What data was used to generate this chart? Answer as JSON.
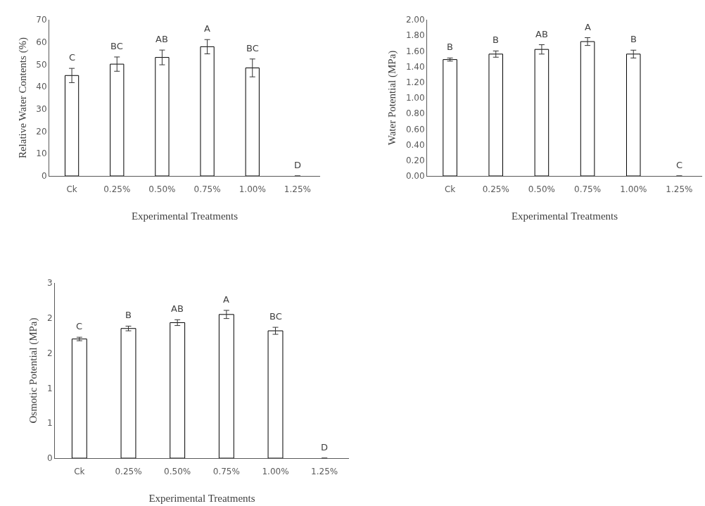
{
  "chart_data": [
    {
      "type": "bar",
      "categories": [
        "Ck",
        "0.25%",
        "0.50%",
        "0.75%",
        "1.00%",
        "1.25%"
      ],
      "values": [
        45.0,
        50.1,
        53.1,
        57.9,
        48.4,
        0
      ],
      "errors": [
        3.2,
        3.2,
        3.3,
        3.2,
        4.0,
        null
      ],
      "color": "#ffffff",
      "ylim": [
        0,
        70
      ],
      "yticks": [
        0,
        10,
        20,
        30,
        40,
        50,
        60,
        70
      ],
      "ylabel": "Relative Water Contents (%)",
      "xlabel": "Experimental Treatments",
      "annotations": [
        "C",
        "BC",
        "AB",
        "A",
        "BC",
        "D"
      ]
    },
    {
      "type": "bar",
      "categories": [
        "Ck",
        "0.25%",
        "0.50%",
        "0.75%",
        "1.00%",
        "1.25%"
      ],
      "values": [
        1.49,
        1.56,
        1.62,
        1.72,
        1.56,
        0
      ],
      "errors": [
        0.02,
        0.04,
        0.06,
        0.05,
        0.05,
        null
      ],
      "color": "#ffffff",
      "ylim": [
        0,
        2
      ],
      "yticks": [
        {
          "value": 0,
          "label": "0.00"
        },
        {
          "value": 0.2,
          "label": "0.20"
        },
        {
          "value": 0.4,
          "label": "0.40"
        },
        {
          "value": 0.6,
          "label": "0.60"
        },
        {
          "value": 0.8,
          "label": "0.80"
        },
        {
          "value": 1,
          "label": "1.00"
        },
        {
          "value": 1.2,
          "label": "1.20"
        },
        {
          "value": 1.4,
          "label": "1.40"
        },
        {
          "value": 1.6,
          "label": "1.60"
        },
        {
          "value": 1.8,
          "label": "1.80"
        },
        {
          "value": 2,
          "label": "2.00"
        }
      ],
      "ylabel": "Water Potential (MPa)",
      "xlabel": "Experimental Treatments",
      "annotations": [
        "B",
        "B",
        "AB",
        "A",
        "B",
        "C"
      ]
    },
    {
      "type": "bar",
      "categories": [
        "Ck",
        "0.25%",
        "0.50%",
        "0.75%",
        "1.00%",
        "1.25%"
      ],
      "values": [
        2.04,
        2.22,
        2.32,
        2.46,
        2.18,
        0
      ],
      "errors": [
        0.03,
        0.04,
        0.05,
        0.07,
        0.06,
        null
      ],
      "color": "#ffffff",
      "ylim": [
        0,
        3
      ],
      "yticks": [
        0,
        {
          "value": 0.6,
          "label": "1"
        },
        {
          "value": 1.2,
          "label": "1"
        },
        {
          "value": 1.8,
          "label": "2"
        },
        {
          "value": 2.4,
          "label": "2"
        },
        3
      ],
      "ylabel": "Osmotic Potential (MPa)",
      "xlabel": "Experimental Treatments",
      "annotations": [
        "C",
        "B",
        "AB",
        "A",
        "BC",
        "D"
      ]
    }
  ]
}
